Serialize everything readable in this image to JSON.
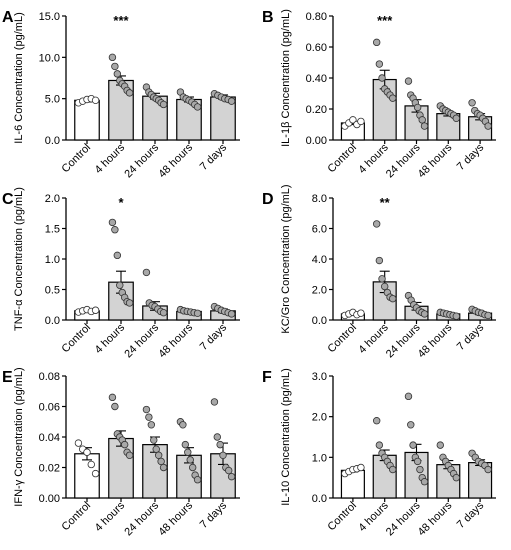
{
  "figure": {
    "colors": {
      "control_fill": "#ffffff",
      "treatment_fill": "#d3d3d3",
      "bar_stroke": "#000000",
      "point_fill": "#a8a8a8",
      "axis": "#000000"
    }
  },
  "chart_data": [
    {
      "panel_label": "A",
      "type": "bar",
      "categories": [
        "Control",
        "4 hours",
        "24 hours",
        "48 hours",
        "7 days"
      ],
      "values": [
        4.8,
        7.2,
        5.3,
        4.9,
        5.2
      ],
      "errors": [
        0.2,
        0.55,
        0.35,
        0.3,
        0.25
      ],
      "points": [
        [
          4.5,
          4.7,
          4.9,
          5.0,
          4.8
        ],
        [
          10.0,
          8.9,
          8.0,
          7.2,
          6.8,
          6.5,
          6.0,
          5.7
        ],
        [
          6.4,
          5.8,
          5.5,
          5.2,
          5.0,
          4.8,
          4.5,
          4.3
        ],
        [
          5.8,
          5.2,
          5.0,
          4.8,
          4.6,
          4.3,
          4.0
        ],
        [
          5.6,
          5.4,
          5.2,
          5.0,
          4.9,
          4.7
        ]
      ],
      "ylabel": "IL-6 Concentration (pg/mL)",
      "ylim": [
        0,
        15
      ],
      "yticks": [
        0,
        5,
        10,
        15
      ],
      "ytick_labels": [
        "0.0",
        "5.0",
        "10.0",
        "15.0"
      ],
      "significance": [
        {
          "category": "4 hours",
          "label": "***"
        }
      ]
    },
    {
      "panel_label": "B",
      "type": "bar",
      "categories": [
        "Control",
        "4 hours",
        "24 hours",
        "48 hours",
        "7 days"
      ],
      "values": [
        0.11,
        0.39,
        0.22,
        0.17,
        0.15
      ],
      "errors": [
        0.01,
        0.06,
        0.04,
        0.015,
        0.02
      ],
      "points": [
        [
          0.09,
          0.11,
          0.13,
          0.1,
          0.12
        ],
        [
          0.63,
          0.49,
          0.4,
          0.33,
          0.31,
          0.29,
          0.27
        ],
        [
          0.38,
          0.29,
          0.27,
          0.24,
          0.21,
          0.16,
          0.13,
          0.09
        ],
        [
          0.22,
          0.2,
          0.19,
          0.18,
          0.17,
          0.16,
          0.14
        ],
        [
          0.24,
          0.19,
          0.17,
          0.16,
          0.14,
          0.12,
          0.09
        ]
      ],
      "ylabel": "IL-1β Concentration (pg/mL)",
      "ylim": [
        0,
        0.8
      ],
      "yticks": [
        0,
        0.2,
        0.4,
        0.6,
        0.8
      ],
      "ytick_labels": [
        "0.00",
        "0.20",
        "0.40",
        "0.60",
        "0.80"
      ],
      "significance": [
        {
          "category": "4 hours",
          "label": "***"
        }
      ]
    },
    {
      "panel_label": "C",
      "type": "bar",
      "categories": [
        "Control",
        "4 hours",
        "24 hours",
        "48 hours",
        "7 days"
      ],
      "values": [
        0.15,
        0.62,
        0.23,
        0.14,
        0.15
      ],
      "errors": [
        0.02,
        0.18,
        0.07,
        0.02,
        0.03
      ],
      "points": [
        [
          0.13,
          0.15,
          0.17,
          0.14,
          0.16
        ],
        [
          1.6,
          1.48,
          1.06,
          0.57,
          0.45,
          0.37,
          0.3,
          0.28
        ],
        [
          0.78,
          0.28,
          0.24,
          0.22,
          0.18,
          0.14,
          0.12
        ],
        [
          0.17,
          0.15,
          0.14,
          0.13,
          0.12,
          0.11
        ],
        [
          0.22,
          0.19,
          0.16,
          0.14,
          0.12,
          0.1
        ]
      ],
      "ylabel": "TNF-α Concentration (pg/mL)",
      "ylim": [
        0,
        2.0
      ],
      "yticks": [
        0,
        0.5,
        1.0,
        1.5,
        2.0
      ],
      "ytick_labels": [
        "0.0",
        "0.5",
        "1.0",
        "1.5",
        "2.0"
      ],
      "significance": [
        {
          "category": "4 hours",
          "label": "*"
        }
      ]
    },
    {
      "panel_label": "D",
      "type": "bar",
      "categories": [
        "Control",
        "4 hours",
        "24 hours",
        "48 hours",
        "7 days"
      ],
      "values": [
        0.4,
        2.5,
        0.9,
        0.4,
        0.45
      ],
      "errors": [
        0.1,
        0.7,
        0.25,
        0.08,
        0.1
      ],
      "points": [
        [
          0.3,
          0.4,
          0.5,
          0.35,
          0.45
        ],
        [
          6.3,
          3.9,
          2.7,
          2.2,
          1.8,
          1.5,
          1.4
        ],
        [
          1.6,
          1.3,
          1.0,
          0.8,
          0.6,
          0.5,
          0.4
        ],
        [
          0.5,
          0.45,
          0.4,
          0.35,
          0.3,
          0.25
        ],
        [
          0.7,
          0.6,
          0.5,
          0.45,
          0.35,
          0.3
        ]
      ],
      "ylabel": "KC/Gro Concentration (pg/mL)",
      "ylim": [
        0,
        8
      ],
      "yticks": [
        0,
        2,
        4,
        6,
        8
      ],
      "ytick_labels": [
        "0.0",
        "2.0",
        "4.0",
        "6.0",
        "8.0"
      ],
      "significance": [
        {
          "category": "4 hours",
          "label": "**"
        }
      ]
    },
    {
      "panel_label": "E",
      "type": "bar",
      "categories": [
        "Control",
        "4 hours",
        "24 hours",
        "48 hours",
        "7 days"
      ],
      "values": [
        0.029,
        0.039,
        0.035,
        0.028,
        0.029
      ],
      "errors": [
        0.004,
        0.005,
        0.005,
        0.005,
        0.007
      ],
      "points": [
        [
          0.036,
          0.032,
          0.03,
          0.022,
          0.016
        ],
        [
          0.066,
          0.06,
          0.042,
          0.04,
          0.038,
          0.035,
          0.03,
          0.028
        ],
        [
          0.058,
          0.053,
          0.048,
          0.038,
          0.032,
          0.028,
          0.024,
          0.02
        ],
        [
          0.05,
          0.048,
          0.035,
          0.03,
          0.025,
          0.02,
          0.015,
          0.012
        ],
        [
          0.063,
          0.04,
          0.035,
          0.028,
          0.02,
          0.018,
          0.014
        ]
      ],
      "ylabel": "IFN-γ Concentration (pg/mL)",
      "ylim": [
        0,
        0.08
      ],
      "yticks": [
        0,
        0.02,
        0.04,
        0.06,
        0.08
      ],
      "ytick_labels": [
        "0.00",
        "0.02",
        "0.04",
        "0.06",
        "0.08"
      ],
      "significance": []
    },
    {
      "panel_label": "F",
      "type": "bar",
      "categories": [
        "Control",
        "4 hours",
        "24 hours",
        "48 hours",
        "7 days"
      ],
      "values": [
        0.68,
        1.05,
        1.12,
        0.82,
        0.87
      ],
      "errors": [
        0.04,
        0.13,
        0.2,
        0.1,
        0.07
      ],
      "points": [
        [
          0.6,
          0.65,
          0.7,
          0.72,
          0.75
        ],
        [
          1.9,
          1.3,
          1.1,
          1.0,
          0.9,
          0.8,
          0.7
        ],
        [
          2.5,
          1.8,
          1.3,
          1.0,
          0.9,
          0.7,
          0.5,
          0.4
        ],
        [
          1.3,
          1.0,
          0.9,
          0.8,
          0.7,
          0.6,
          0.5
        ],
        [
          1.1,
          1.0,
          0.9,
          0.85,
          0.8,
          0.7
        ]
      ],
      "ylabel": "IL-10 Concentration (pg/mL)",
      "ylim": [
        0,
        3.0
      ],
      "yticks": [
        0,
        1,
        2,
        3
      ],
      "ytick_labels": [
        "0.0",
        "1.0",
        "2.0",
        "3.0"
      ],
      "significance": []
    }
  ]
}
